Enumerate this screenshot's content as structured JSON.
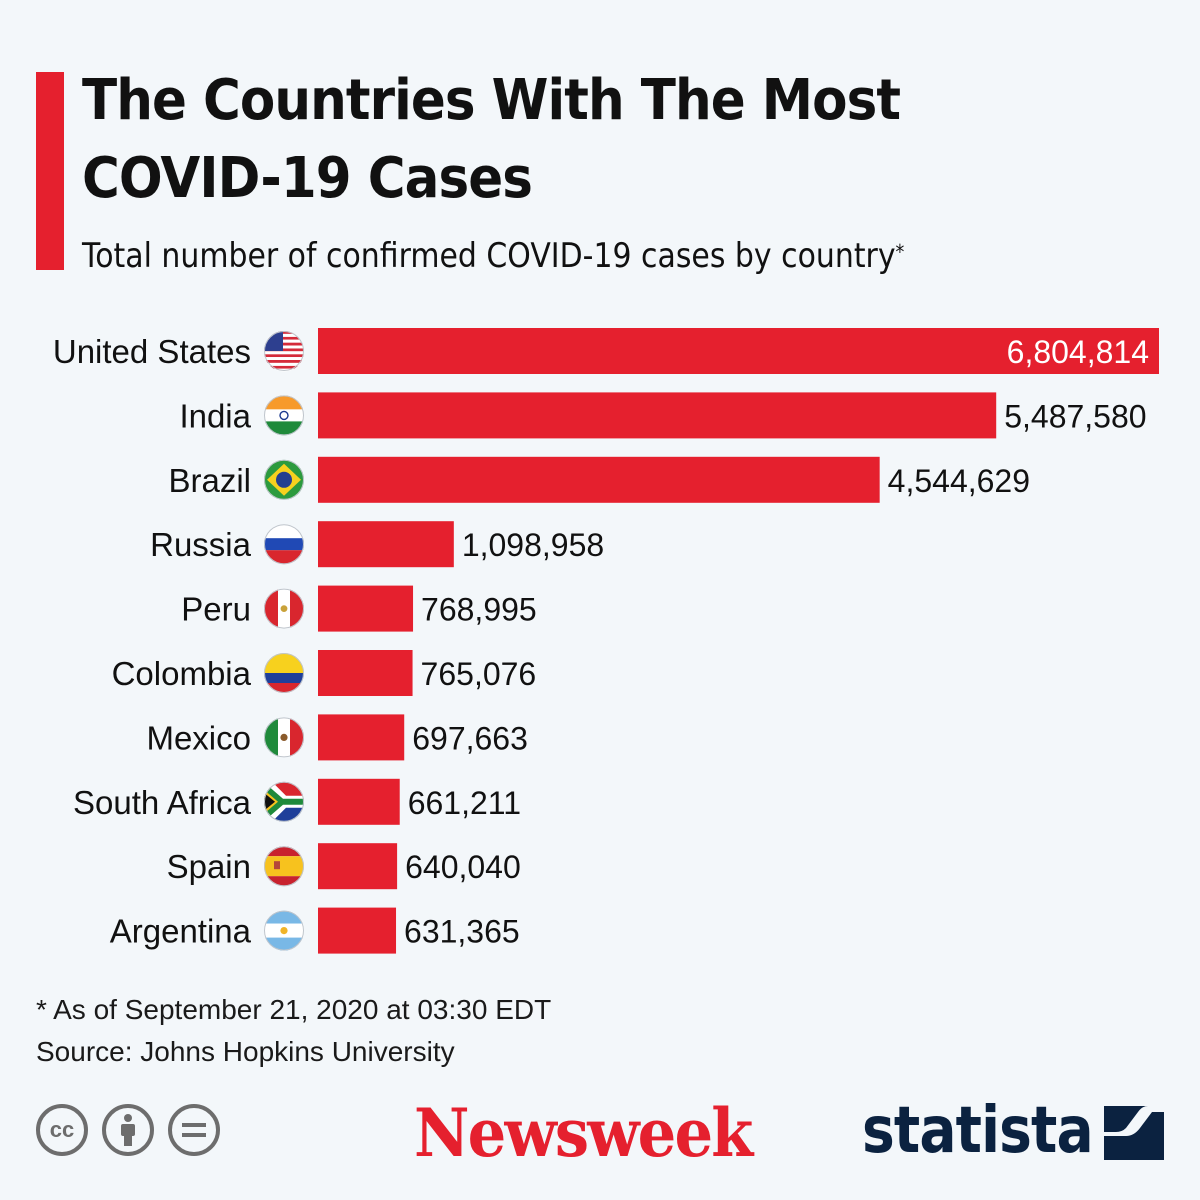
{
  "header": {
    "title": "The Countries With The Most COVID-19 Cases",
    "subtitle": "Total number of confirmed COVID-19 cases by country",
    "subtitle_mark": "*"
  },
  "chart_data": {
    "type": "bar",
    "orientation": "horizontal",
    "categories": [
      "United States",
      "India",
      "Brazil",
      "Russia",
      "Peru",
      "Colombia",
      "Mexico",
      "South Africa",
      "Spain",
      "Argentina"
    ],
    "values": [
      6804814,
      5487580,
      4544629,
      1098958,
      768995,
      765076,
      697663,
      661211,
      640040,
      631365
    ],
    "value_labels": [
      "6,804,814",
      "5,487,580",
      "4,544,629",
      "1,098,958",
      "768,995",
      "765,076",
      "697,663",
      "661,211",
      "640,040",
      "631,365"
    ],
    "flag_icons": [
      "usa-flag-icon",
      "india-flag-icon",
      "brazil-flag-icon",
      "russia-flag-icon",
      "peru-flag-icon",
      "colombia-flag-icon",
      "mexico-flag-icon",
      "south-africa-flag-icon",
      "spain-flag-icon",
      "argentina-flag-icon"
    ],
    "bar_color": "#e5202e",
    "xlim": [
      0,
      6804814
    ],
    "grid": false
  },
  "footer": {
    "note": "* As of September 21, 2020 at 03:30 EDT",
    "source": "Source: Johns Hopkins University",
    "license_icons": [
      "cc-icon",
      "by-icon",
      "nd-icon"
    ],
    "publisher": "Newsweek",
    "partner": "statista"
  }
}
